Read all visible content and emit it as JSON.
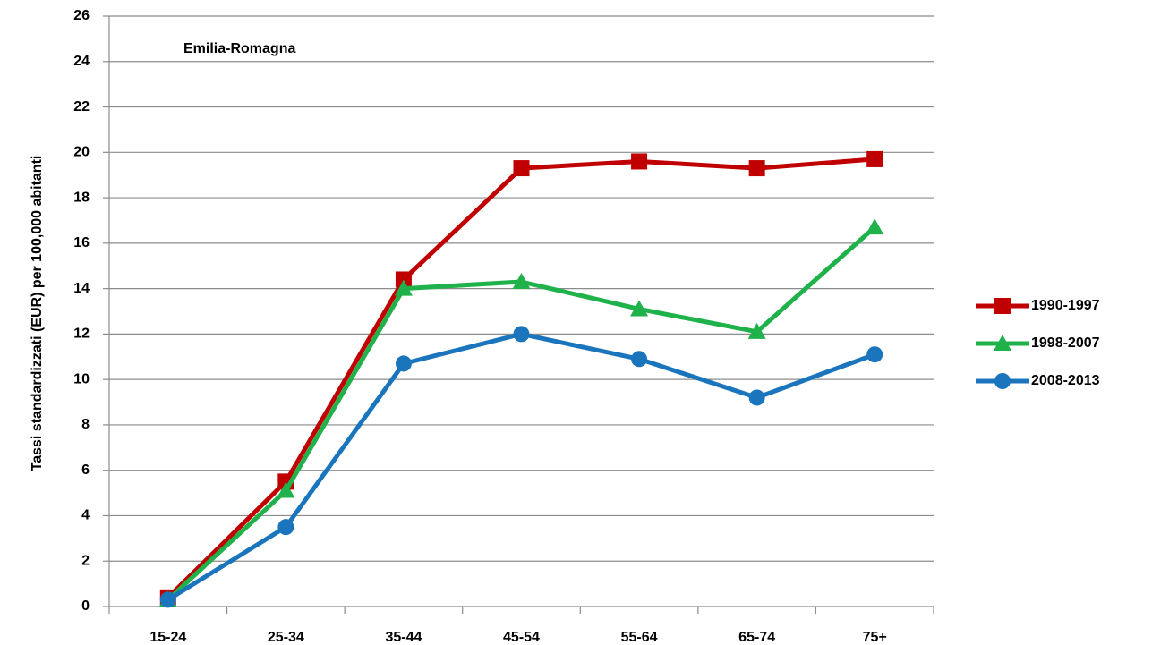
{
  "chart_data": {
    "type": "line",
    "annotation": "Emilia-Romagna",
    "y_label": "Tassi standardizzati  (EUR) per 100,000 abitanti",
    "categories": [
      "15-24",
      "25-34",
      "35-44",
      "45-54",
      "55-64",
      "65-74",
      "75+"
    ],
    "series": [
      {
        "name": "1990-1997",
        "color": "#c00000",
        "marker": "square",
        "values": [
          0.4,
          5.5,
          14.4,
          19.3,
          19.6,
          19.3,
          19.7
        ]
      },
      {
        "name": "1998-2007",
        "color": "#1fb24a",
        "marker": "triangle",
        "values": [
          0.3,
          5.1,
          14.0,
          14.3,
          13.1,
          12.1,
          16.7
        ]
      },
      {
        "name": "2008-2013",
        "color": "#1b75bc",
        "marker": "circle",
        "values": [
          0.3,
          3.5,
          10.7,
          12.0,
          10.9,
          9.2,
          11.1
        ]
      }
    ],
    "ylim": [
      0,
      26
    ],
    "yticks": [
      0,
      2,
      4,
      6,
      8,
      10,
      12,
      14,
      16,
      18,
      20,
      22,
      24,
      26
    ],
    "grid": true,
    "legend": "right"
  }
}
